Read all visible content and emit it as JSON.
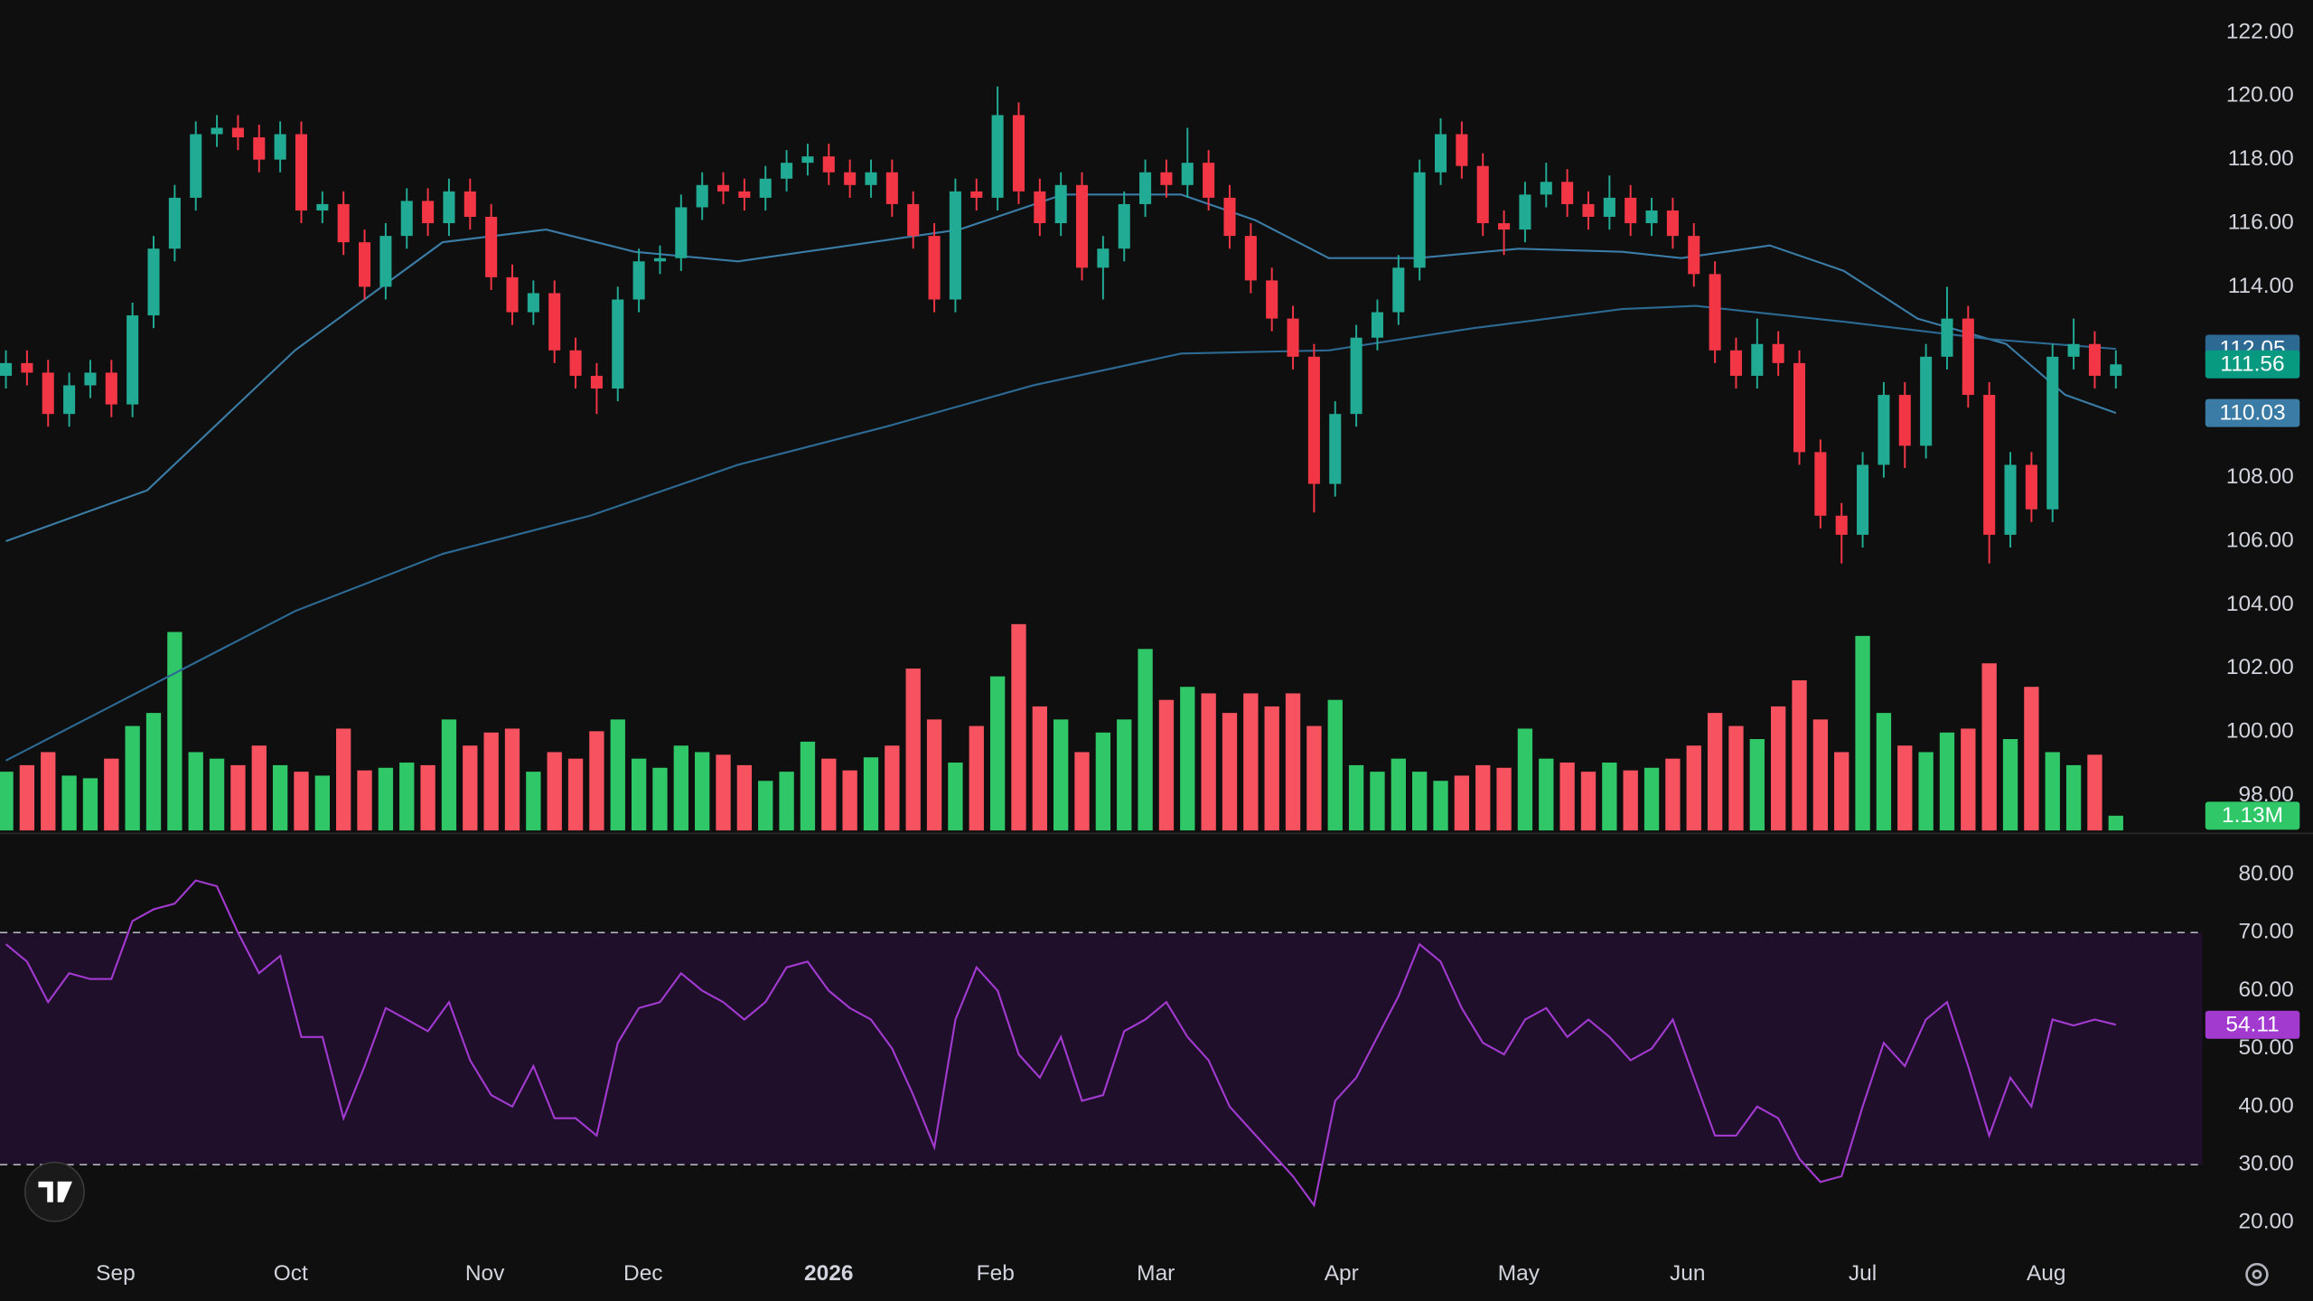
{
  "chart_data": {
    "type": "candlestick",
    "xlim": [
      -0.28,
      104.1
    ],
    "ylim": [
      96.9,
      123.02
    ],
    "yticks": [
      {
        "value": 98,
        "label": "98.00"
      },
      {
        "value": 100,
        "label": "100.00"
      },
      {
        "value": 102,
        "label": "102.00"
      },
      {
        "value": 104,
        "label": "104.00"
      },
      {
        "value": 106,
        "label": "106.00"
      },
      {
        "value": 108,
        "label": "108.00"
      },
      {
        "value": 110,
        "label": "110.00"
      },
      {
        "value": 112,
        "label": "112.00"
      },
      {
        "value": 114,
        "label": "114.00"
      },
      {
        "value": 116,
        "label": "116.00"
      },
      {
        "value": 118,
        "label": "118.00"
      },
      {
        "value": 120,
        "label": "120.00"
      },
      {
        "value": 122,
        "label": "122.00"
      }
    ],
    "xticks": [
      {
        "value": 5.2,
        "label": "Sep"
      },
      {
        "value": 13.5,
        "label": "Oct"
      },
      {
        "value": 22.7,
        "label": "Nov"
      },
      {
        "value": 30.2,
        "label": "Dec"
      },
      {
        "value": 39.0,
        "label": "2026"
      },
      {
        "value": 46.9,
        "label": "Feb"
      },
      {
        "value": 54.5,
        "label": "Mar"
      },
      {
        "value": 63.3,
        "label": "Apr"
      },
      {
        "value": 71.7,
        "label": "May"
      },
      {
        "value": 79.7,
        "label": "Jun"
      },
      {
        "value": 88.0,
        "label": "Jul"
      },
      {
        "value": 96.7,
        "label": "Aug"
      }
    ],
    "up_color": "#22ab94",
    "down_color": "#f23645",
    "open": [
      111.2,
      111.6,
      111.3,
      110.0,
      110.9,
      111.3,
      110.3,
      113.1,
      115.2,
      116.8,
      118.8,
      119.0,
      118.7,
      118.0,
      118.8,
      116.4,
      116.6,
      115.4,
      114.0,
      115.6,
      116.7,
      116.0,
      117.0,
      116.2,
      114.3,
      113.2,
      113.8,
      112.0,
      111.2,
      110.8,
      113.6,
      114.8,
      114.9,
      116.5,
      117.2,
      117.0,
      116.8,
      117.4,
      117.9,
      118.1,
      117.6,
      117.2,
      117.6,
      116.6,
      115.6,
      113.6,
      117.0,
      116.8,
      119.4,
      117.0,
      116.0,
      117.2,
      114.6,
      115.2,
      116.6,
      117.6,
      117.2,
      117.9,
      116.8,
      115.6,
      114.2,
      113.0,
      111.8,
      107.8,
      110.0,
      112.4,
      113.2,
      114.6,
      117.6,
      118.8,
      117.8,
      116.0,
      115.8,
      116.9,
      117.3,
      116.6,
      116.2,
      116.8,
      116.0,
      116.4,
      115.6,
      114.4,
      112.0,
      111.2,
      112.2,
      111.6,
      108.8,
      106.8,
      106.2,
      108.4,
      110.6,
      109.0,
      111.8,
      113.0,
      110.6,
      106.2,
      108.4,
      107.0,
      111.8,
      112.2,
      111.2
    ],
    "high": [
      112.0,
      112.0,
      111.7,
      111.3,
      111.7,
      111.7,
      113.5,
      115.6,
      117.2,
      119.2,
      119.4,
      119.4,
      119.1,
      119.2,
      119.2,
      117.0,
      117.0,
      115.8,
      116.0,
      117.1,
      117.1,
      117.4,
      117.4,
      116.6,
      114.7,
      114.2,
      114.2,
      112.4,
      111.6,
      114.0,
      115.2,
      115.3,
      116.9,
      117.6,
      117.6,
      117.4,
      117.8,
      118.3,
      118.5,
      118.5,
      118.0,
      118.0,
      118.0,
      117.0,
      116.0,
      117.4,
      117.4,
      120.3,
      119.8,
      117.4,
      117.6,
      117.6,
      115.6,
      117.0,
      118.0,
      118.0,
      119.0,
      118.3,
      117.2,
      116.0,
      114.6,
      113.4,
      112.2,
      110.4,
      112.8,
      113.6,
      115.0,
      118.0,
      119.3,
      119.2,
      118.2,
      116.4,
      117.3,
      117.9,
      117.7,
      117.0,
      117.5,
      117.2,
      116.8,
      116.8,
      116.0,
      114.8,
      112.4,
      113.0,
      112.6,
      112.0,
      109.2,
      107.2,
      108.8,
      111.0,
      111.0,
      112.2,
      114.0,
      113.4,
      111.0,
      108.8,
      108.8,
      112.2,
      113.0,
      112.6,
      112.0
    ],
    "low": [
      110.8,
      110.9,
      109.6,
      109.6,
      110.5,
      109.9,
      109.9,
      112.7,
      114.8,
      116.4,
      118.4,
      118.3,
      117.6,
      117.6,
      116.0,
      116.0,
      115.0,
      113.6,
      113.6,
      115.2,
      115.6,
      115.6,
      115.8,
      113.9,
      112.8,
      112.8,
      111.6,
      110.8,
      110.0,
      110.4,
      113.2,
      114.4,
      114.5,
      116.1,
      116.6,
      116.4,
      116.4,
      117.0,
      117.5,
      117.2,
      116.8,
      116.8,
      116.2,
      115.2,
      113.2,
      113.2,
      116.4,
      116.4,
      116.6,
      115.6,
      115.6,
      114.2,
      113.6,
      114.8,
      116.2,
      116.8,
      116.8,
      116.4,
      115.2,
      113.8,
      112.6,
      111.4,
      106.9,
      107.4,
      109.6,
      112.0,
      112.8,
      114.2,
      117.2,
      117.4,
      115.6,
      115.0,
      115.4,
      116.5,
      116.2,
      115.8,
      115.8,
      115.6,
      115.6,
      115.2,
      114.0,
      111.6,
      110.8,
      110.8,
      111.2,
      108.4,
      106.4,
      105.3,
      105.8,
      108.0,
      108.3,
      108.6,
      111.4,
      110.2,
      105.3,
      105.8,
      106.6,
      106.6,
      111.4,
      110.8,
      110.8
    ],
    "close": [
      111.6,
      111.3,
      110.0,
      110.9,
      111.3,
      110.3,
      113.1,
      115.2,
      116.8,
      118.8,
      119.0,
      118.7,
      118.0,
      118.8,
      116.4,
      116.6,
      115.4,
      114.0,
      115.6,
      116.7,
      116.0,
      117.0,
      116.2,
      114.3,
      113.2,
      113.8,
      112.0,
      111.2,
      110.8,
      113.6,
      114.8,
      114.9,
      116.5,
      117.2,
      117.0,
      116.8,
      117.4,
      117.9,
      118.1,
      117.6,
      117.2,
      117.6,
      116.6,
      115.6,
      113.6,
      117.0,
      116.8,
      119.4,
      117.0,
      116.0,
      117.2,
      114.6,
      115.2,
      116.6,
      117.6,
      117.2,
      117.9,
      116.8,
      115.6,
      114.2,
      113.0,
      111.8,
      107.8,
      110.0,
      112.4,
      113.2,
      114.6,
      117.6,
      118.8,
      117.8,
      116.0,
      115.8,
      116.9,
      117.3,
      116.6,
      116.2,
      116.8,
      116.0,
      116.4,
      115.6,
      114.4,
      112.0,
      111.2,
      112.2,
      111.6,
      108.8,
      106.8,
      106.2,
      108.4,
      110.6,
      109.0,
      111.8,
      113.0,
      110.6,
      106.2,
      108.4,
      107.0,
      111.8,
      112.2,
      111.2,
      111.56
    ],
    "close_box_color": "#089981",
    "volume": [
      4.5,
      5.0,
      6.0,
      4.2,
      4.0,
      5.5,
      8.0,
      9.0,
      15.2,
      6.0,
      5.5,
      5.0,
      6.5,
      5.0,
      4.5,
      4.2,
      7.8,
      4.6,
      4.8,
      5.2,
      5.0,
      8.5,
      6.5,
      7.5,
      7.8,
      4.5,
      6.0,
      5.5,
      7.6,
      8.5,
      5.5,
      4.8,
      6.5,
      6.0,
      5.8,
      5.0,
      3.8,
      4.5,
      6.8,
      5.5,
      4.6,
      5.6,
      6.5,
      12.4,
      8.5,
      5.2,
      8.0,
      11.8,
      15.8,
      9.5,
      8.5,
      6.0,
      7.5,
      8.5,
      13.9,
      10.0,
      11.0,
      10.5,
      9.0,
      10.5,
      9.5,
      10.5,
      8.0,
      10.0,
      5.0,
      4.5,
      5.5,
      4.5,
      3.8,
      4.2,
      5.0,
      4.8,
      7.8,
      5.5,
      5.2,
      4.5,
      5.2,
      4.6,
      4.8,
      5.5,
      6.5,
      9.0,
      8.0,
      7.0,
      9.5,
      11.5,
      8.5,
      6.0,
      14.9,
      9.0,
      6.5,
      6.0,
      7.5,
      7.8,
      12.8,
      7.0,
      11.0,
      6.0,
      5.0,
      5.8,
      1.13
    ],
    "volume_ylim": [
      0,
      63.6
    ],
    "volume_last_label": "1.13M",
    "volume_up_color": "#2fc768",
    "volume_down_color": "#f7525f",
    "moving_averages": [
      {
        "color": "#3a7ca5",
        "x": [
          0,
          6.7,
          13.7,
          20.7,
          25.6,
          29.8,
          34.7,
          38.9,
          45.2,
          50.1,
          55.7,
          59.2,
          62.7,
          66.9,
          71.7,
          76.6,
          79.4,
          83.6,
          87.1,
          90.6,
          94.8,
          97.6,
          100
        ],
        "values": [
          106.0,
          107.6,
          112.0,
          115.4,
          115.8,
          115.1,
          114.8,
          115.2,
          115.8,
          116.9,
          116.9,
          116.1,
          114.9,
          114.9,
          115.2,
          115.1,
          114.9,
          115.3,
          114.5,
          113.0,
          112.2,
          110.6,
          110.03
        ]
      },
      {
        "color": "#2c6a94",
        "x": [
          0,
          13.7,
          20.7,
          27.7,
          34.7,
          41.7,
          48.7,
          55.7,
          62.7,
          69.6,
          76.6,
          80.1,
          87.1,
          94.1,
          100
        ],
        "values": [
          99.1,
          103.8,
          105.6,
          106.8,
          108.4,
          109.6,
          110.9,
          111.9,
          112.0,
          112.7,
          113.3,
          113.4,
          112.9,
          112.35,
          112.05
        ]
      }
    ],
    "rsi": {
      "color": "#a23ad0",
      "band": [
        30,
        70
      ],
      "band_color": "#1f0f2a",
      "ylim": [
        15.9,
        87.1
      ],
      "yticks": [
        {
          "value": 20,
          "label": "20.00"
        },
        {
          "value": 30,
          "label": "30.00"
        },
        {
          "value": 40,
          "label": "40.00"
        },
        {
          "value": 50,
          "label": "50.00"
        },
        {
          "value": 60,
          "label": "60.00"
        },
        {
          "value": 70,
          "label": "70.00"
        },
        {
          "value": 80,
          "label": "80.00"
        }
      ],
      "values": [
        68,
        65,
        58,
        63,
        62,
        62,
        72,
        74,
        75,
        79,
        78,
        70,
        63,
        66,
        52,
        52,
        38,
        47,
        57,
        55,
        53,
        58,
        48,
        42,
        40,
        47,
        38,
        38,
        35,
        51,
        57,
        58,
        63,
        60,
        58,
        55,
        58,
        64,
        65,
        60,
        57,
        55,
        50,
        42,
        33,
        55,
        64,
        60,
        49,
        45,
        52,
        41,
        42,
        53,
        55,
        58,
        52,
        48,
        40,
        36,
        32,
        28,
        23,
        41,
        45,
        52,
        59,
        68,
        65,
        57,
        51,
        49,
        55,
        57,
        52,
        55,
        52,
        48,
        50,
        55,
        45,
        35,
        35,
        40,
        38,
        31,
        27,
        28,
        40,
        51,
        47,
        55,
        58,
        47,
        35,
        45,
        40,
        55,
        54,
        55,
        54.11
      ]
    }
  }
}
